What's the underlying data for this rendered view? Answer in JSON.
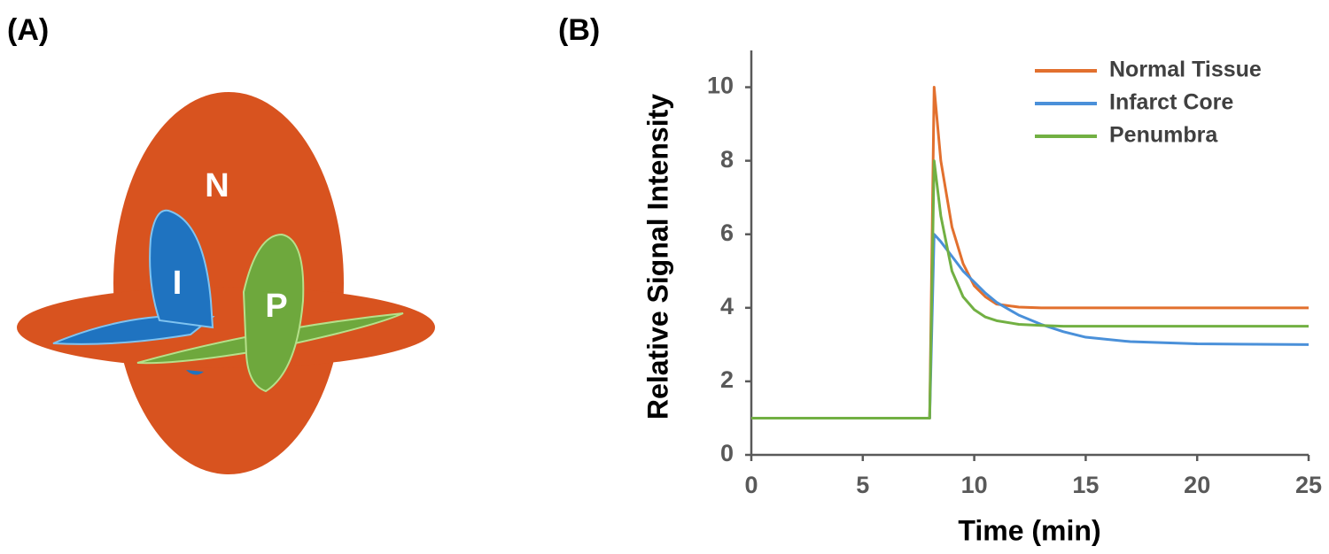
{
  "panel_a": {
    "label": "(A)",
    "regions": [
      "N",
      "I",
      "P"
    ]
  },
  "chart_data": {
    "type": "line",
    "panel_label": "(B)",
    "x_label": "Time (min)",
    "y_label": "Relative Signal Intensity",
    "x": [
      0,
      8,
      8.2,
      8.5,
      9,
      9.5,
      10,
      10.5,
      11,
      12,
      13,
      14,
      15,
      17,
      20,
      25
    ],
    "series": [
      {
        "name": "Normal Tissue",
        "color": "#e2702e",
        "values": [
          1,
          1,
          10,
          8,
          6.2,
          5.2,
          4.6,
          4.3,
          4.1,
          4.02,
          4,
          4,
          4,
          4,
          4,
          4
        ]
      },
      {
        "name": "Infarct Core",
        "color": "#4a90d9",
        "values": [
          1,
          1,
          6,
          5.8,
          5.4,
          5,
          4.7,
          4.4,
          4.15,
          3.8,
          3.55,
          3.35,
          3.2,
          3.08,
          3.02,
          3
        ]
      },
      {
        "name": "Penumbra",
        "color": "#72b043",
        "values": [
          1,
          1,
          8,
          6.5,
          5,
          4.3,
          3.95,
          3.75,
          3.65,
          3.55,
          3.52,
          3.5,
          3.5,
          3.5,
          3.5,
          3.5
        ]
      }
    ],
    "xlim": [
      0,
      25
    ],
    "ylim": [
      0,
      11
    ],
    "xticks": [
      0,
      5,
      10,
      15,
      20,
      25
    ],
    "yticks": [
      0,
      2,
      4,
      6,
      8,
      10
    ],
    "legend": "upper right",
    "grid": false
  }
}
